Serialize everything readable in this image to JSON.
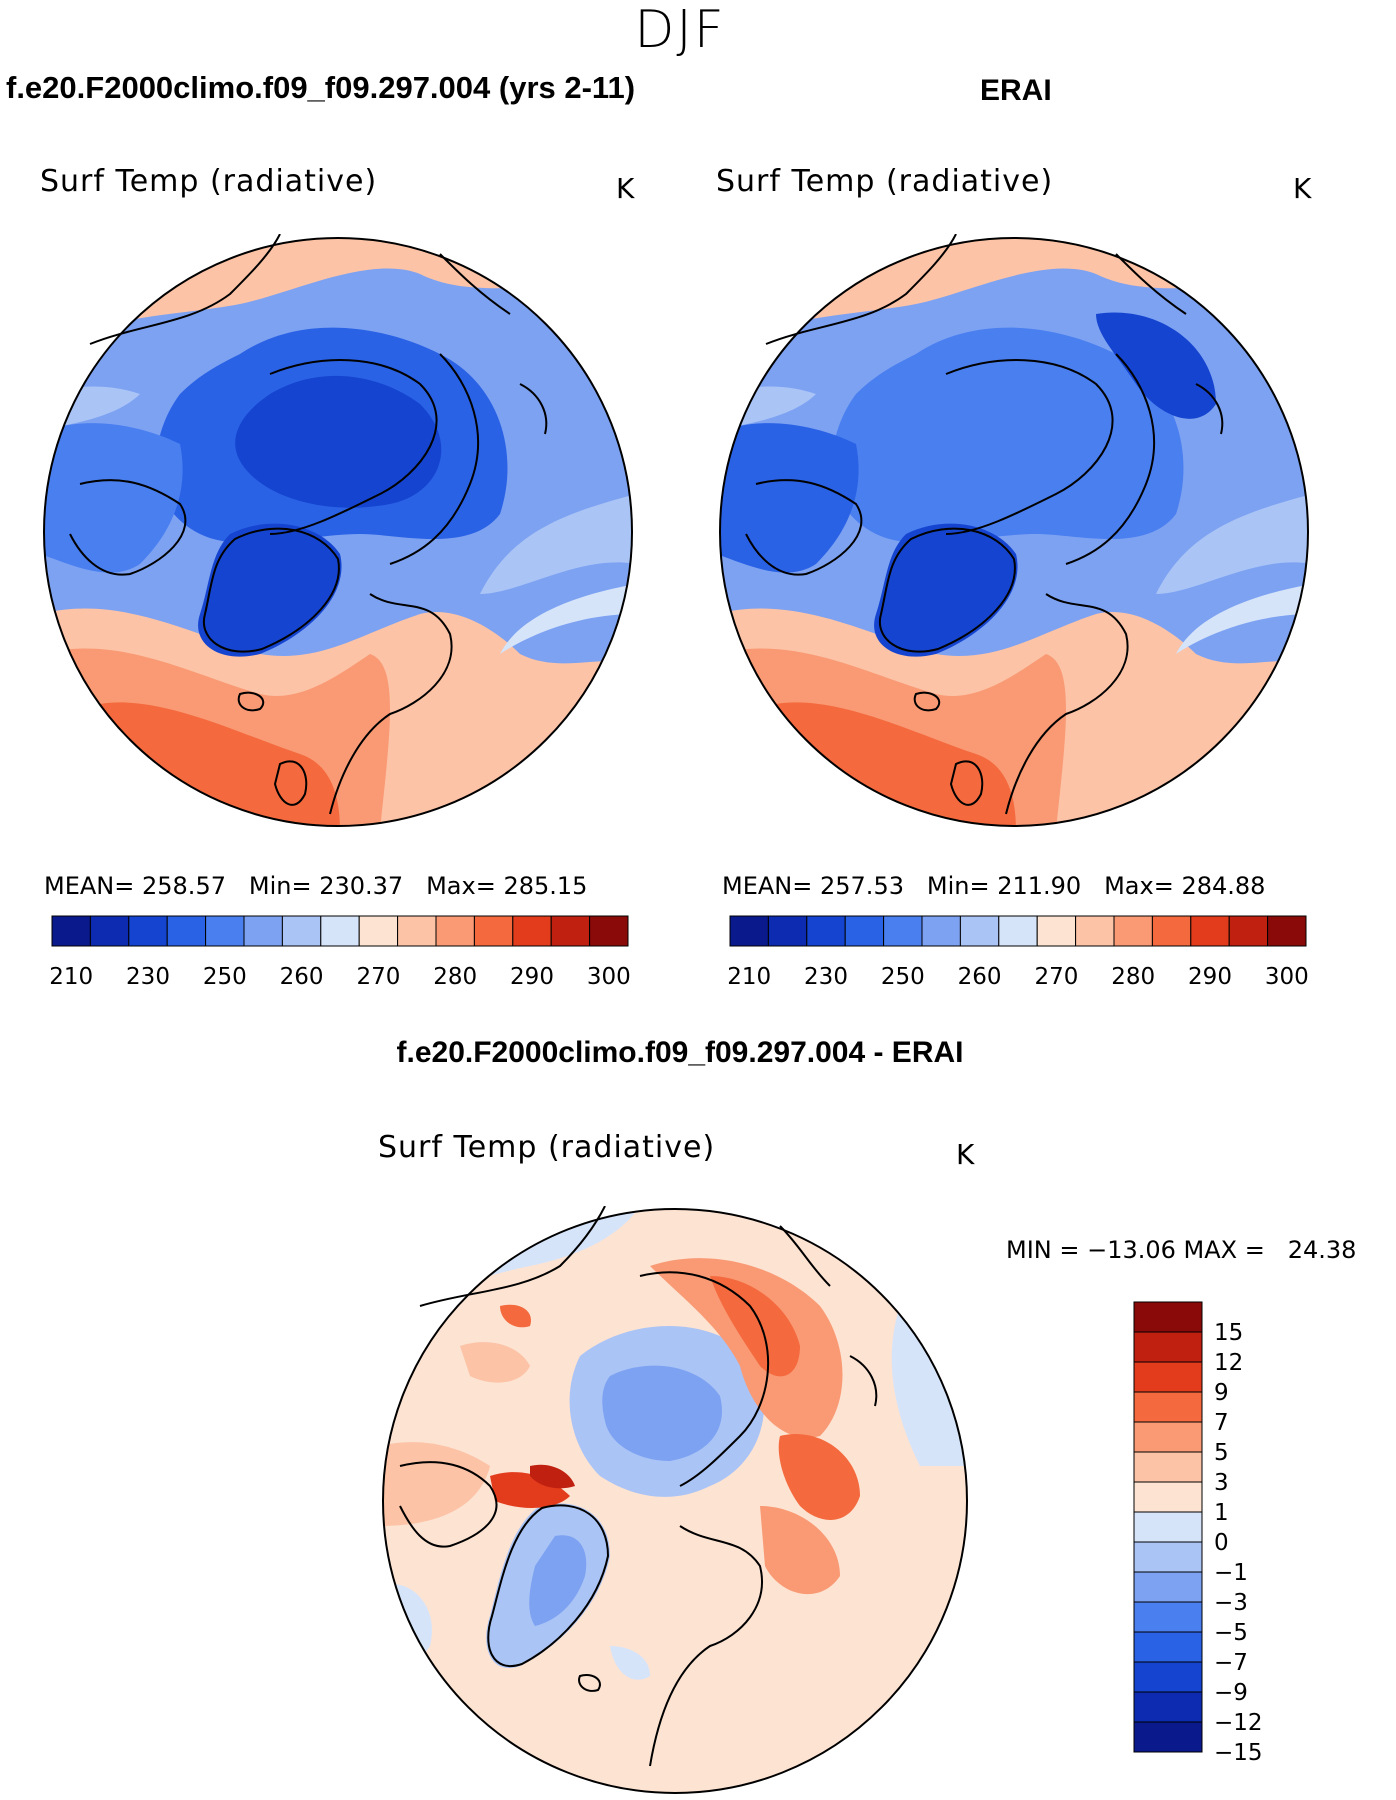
{
  "season": "DJF",
  "panels": [
    {
      "title": "f.e20.F2000climo.f09_f09.297.004 (yrs 2-11)",
      "variable": "Surf Temp (radiative)",
      "unit": "K",
      "mean_label": "MEAN=",
      "mean": "258.57",
      "min_label": "Min=",
      "min": "230.37",
      "max_label": "Max=",
      "max": "285.15"
    },
    {
      "title": "ERAI",
      "variable": "Surf Temp (radiative)",
      "unit": "K",
      "mean_label": "MEAN=",
      "mean": "257.53",
      "min_label": "Min=",
      "min": "211.90",
      "max_label": "Max=",
      "max": "284.88"
    }
  ],
  "diff_panel": {
    "title": "f.e20.F2000climo.f09_f09.297.004 - ERAI",
    "variable": "Surf Temp (radiative)",
    "unit": "K",
    "stats": "MIN = −13.06 MAX =   24.38"
  },
  "abs_colorbar": {
    "colors": [
      "#0a1a8c",
      "#0d2bb0",
      "#1545d0",
      "#2a62e6",
      "#4a7ff0",
      "#7da2f2",
      "#aac4f6",
      "#d6e4fa",
      "#fde3d2",
      "#fcc3a6",
      "#f99a74",
      "#f46a3e",
      "#e33c1c",
      "#c02010",
      "#8a0a0a"
    ],
    "tick_labels": [
      "210",
      "230",
      "250",
      "260",
      "270",
      "280",
      "290",
      "300"
    ]
  },
  "diff_colorbar": {
    "colors": [
      "#8a0a0a",
      "#c02010",
      "#e33c1c",
      "#f46a3e",
      "#f99a74",
      "#fcc3a6",
      "#fde3d2",
      "#d6e4fa",
      "#aac4f6",
      "#7da2f2",
      "#4a7ff0",
      "#2a62e6",
      "#1545d0",
      "#0d2bb0",
      "#0a1a8c"
    ],
    "tick_labels": [
      "15",
      "12",
      "9",
      "7",
      "5",
      "3",
      "1",
      "0",
      "−1",
      "−3",
      "−5",
      "−7",
      "−9",
      "−12",
      "−15"
    ]
  }
}
